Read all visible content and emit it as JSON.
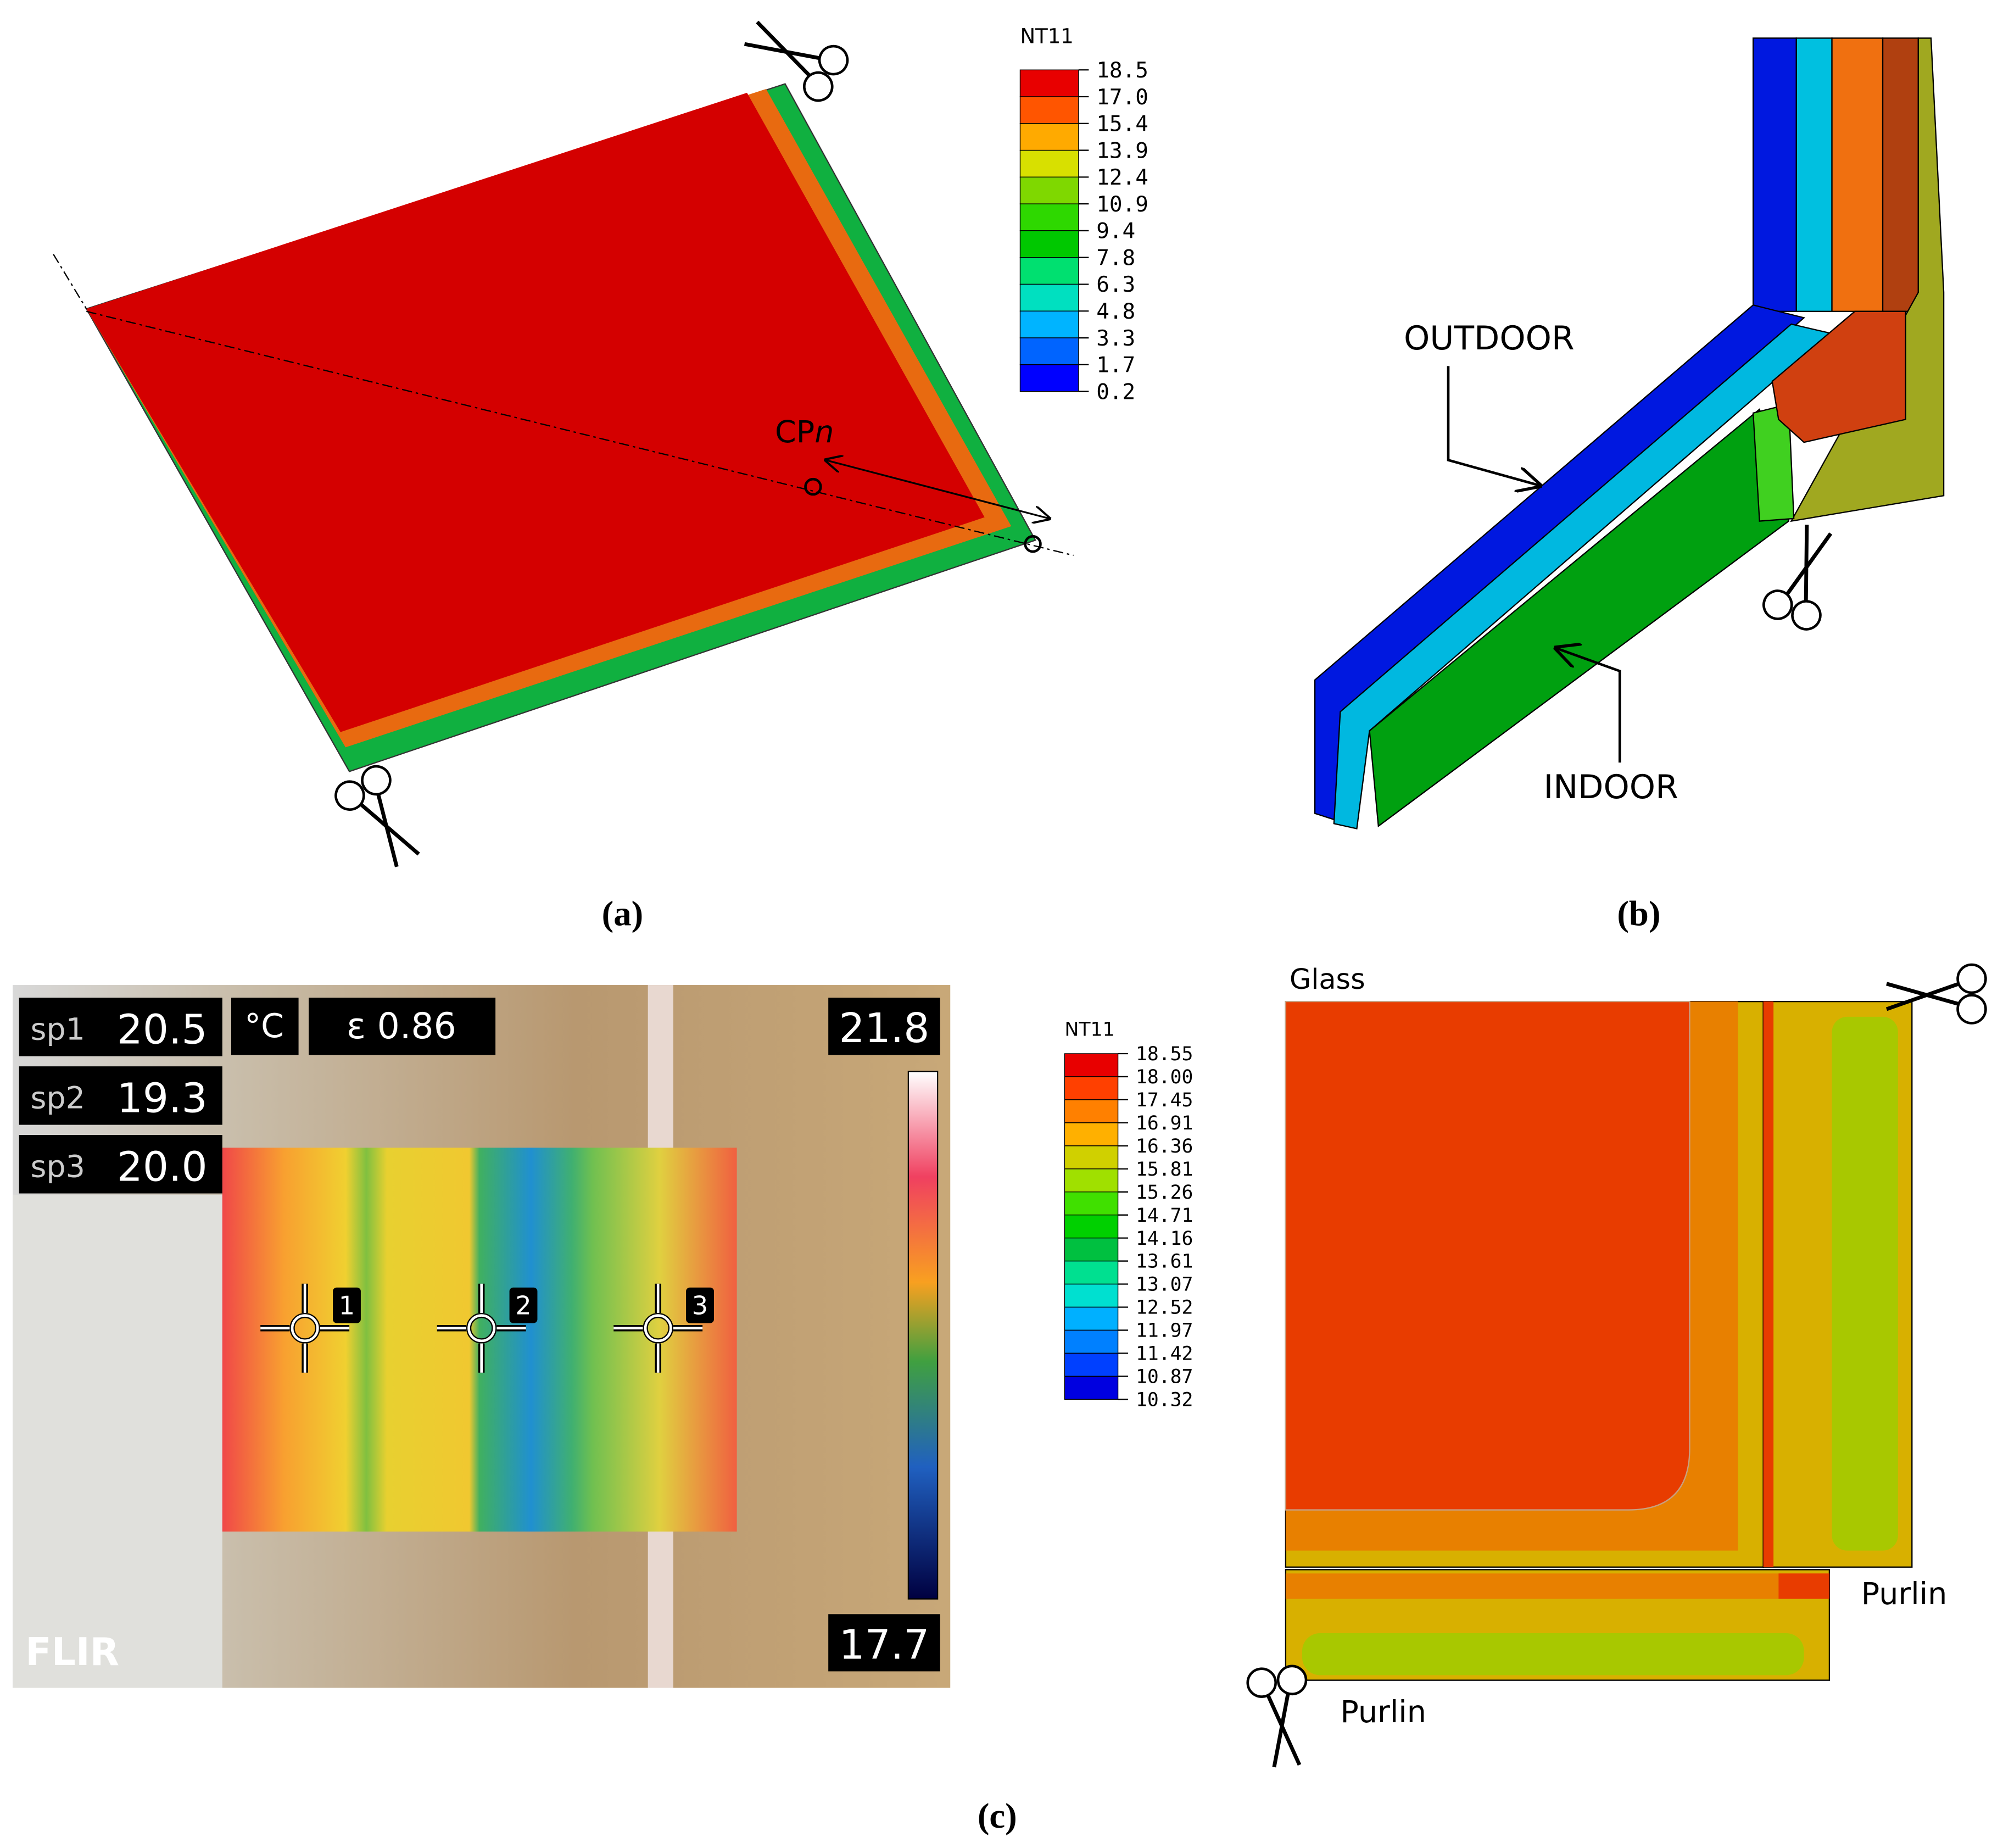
{
  "panel_a": {
    "label": "(a)",
    "legend": {
      "title": "NT11",
      "ticks": [
        "18.5",
        "17.0",
        "15.4",
        "13.9",
        "12.4",
        "10.9",
        "9.4",
        "7.8",
        "6.3",
        "4.8",
        "3.3",
        "1.7",
        "0.2"
      ]
    },
    "point_label": {
      "main": "CP",
      "italic": "n"
    }
  },
  "panel_b": {
    "label": "(b)",
    "outdoor": "OUTDOOR",
    "indoor": "INDOOR"
  },
  "panel_c": {
    "label": "(c)",
    "camera": {
      "spots": [
        {
          "name": "sp1",
          "value": "20.5"
        },
        {
          "name": "sp2",
          "value": "19.3"
        },
        {
          "name": "sp3",
          "value": "20.0"
        }
      ],
      "unit": "°C",
      "emissivity": "ε 0.86",
      "max": "21.8",
      "min": "17.7",
      "brand": "FLIR",
      "markers": [
        "1",
        "2",
        "3"
      ]
    },
    "legend": {
      "title": "NT11",
      "ticks": [
        "18.55",
        "18.00",
        "17.45",
        "16.91",
        "16.36",
        "15.81",
        "15.26",
        "14.71",
        "14.16",
        "13.61",
        "13.07",
        "12.52",
        "11.97",
        "11.42",
        "10.87",
        "10.32"
      ]
    },
    "labels": {
      "glass": "Glass",
      "purlin_right": "Purlin",
      "purlin_bottom": "Purlin"
    }
  }
}
